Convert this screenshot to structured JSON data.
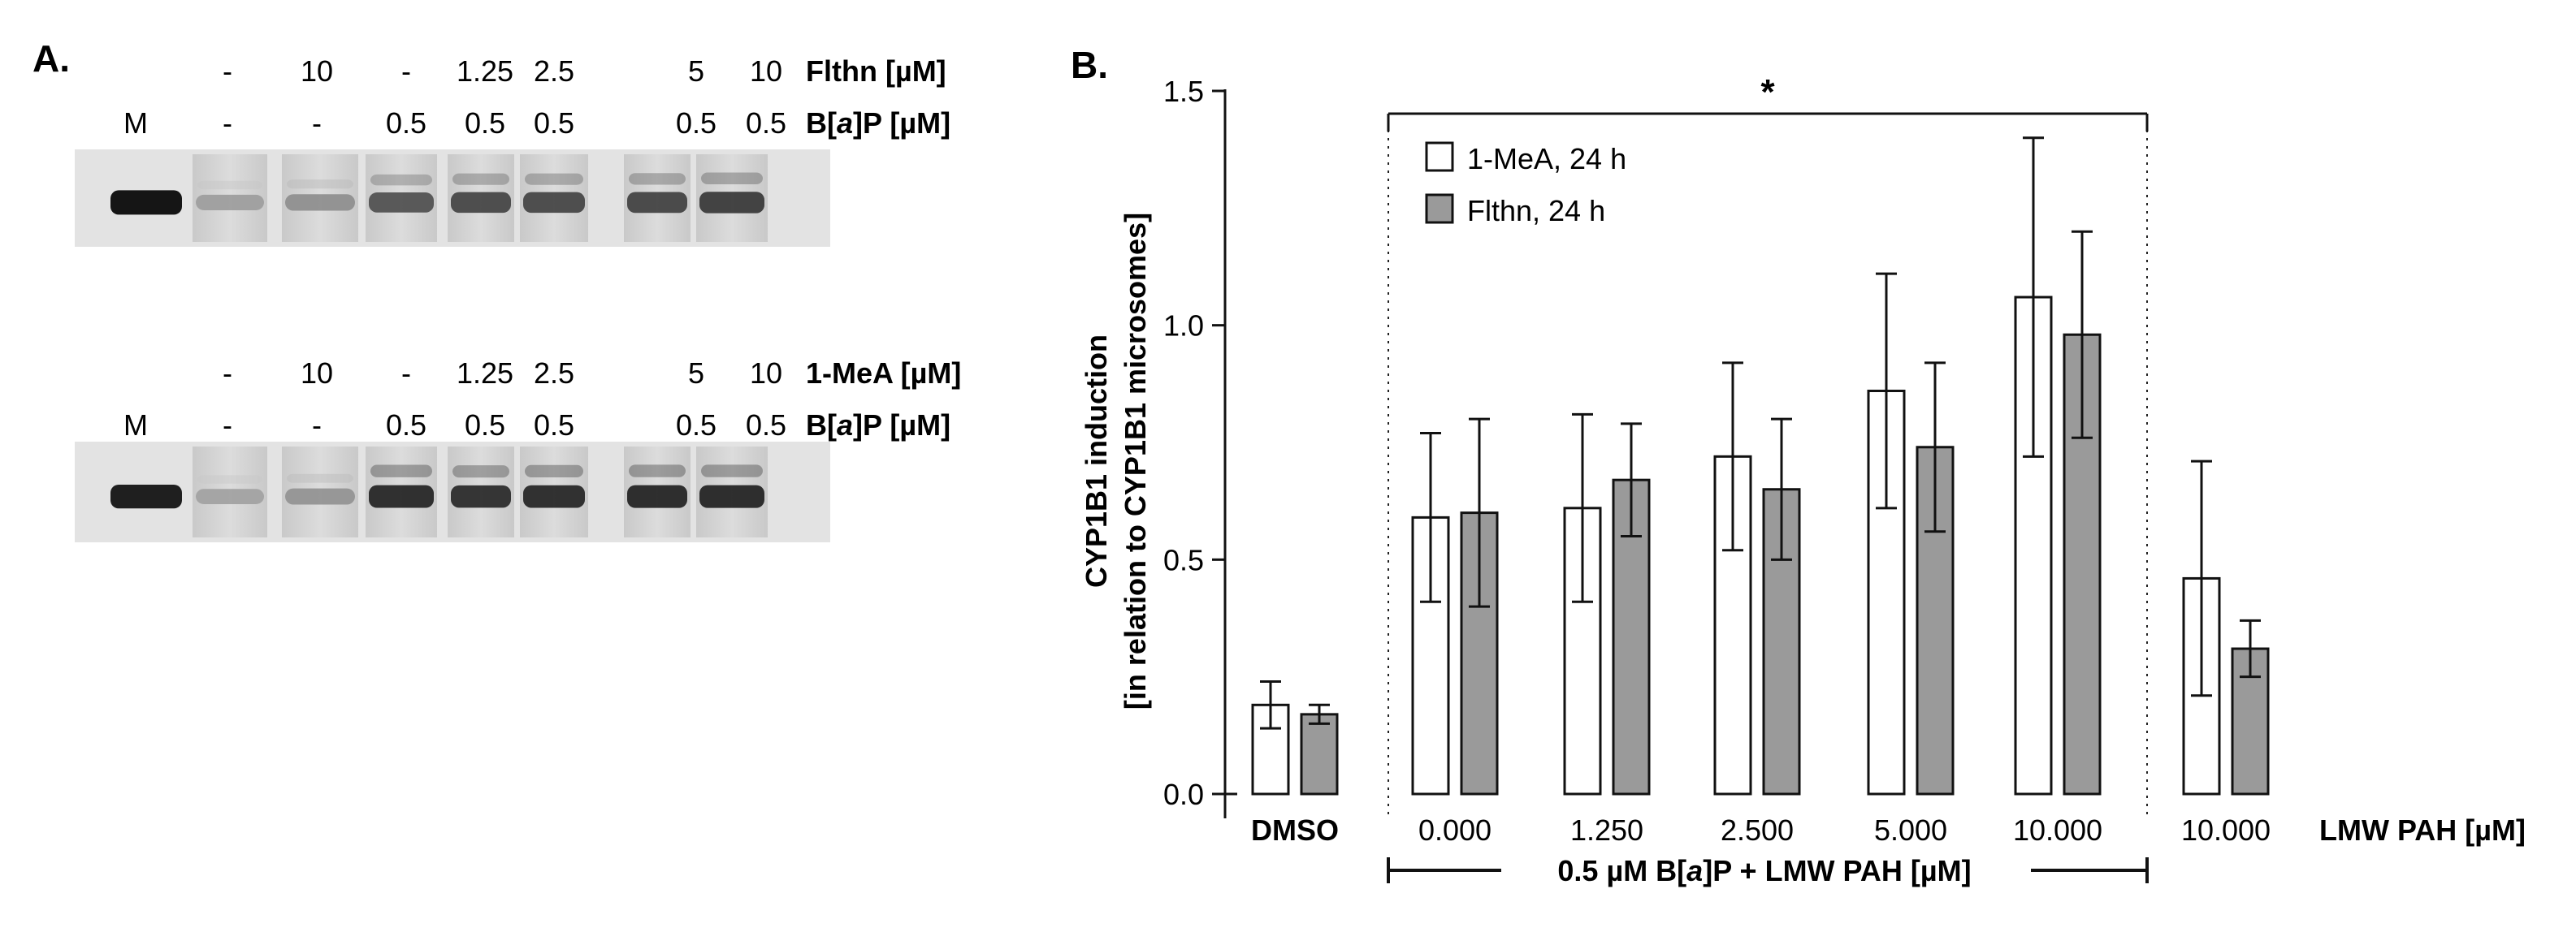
{
  "panel_a": {
    "label": "A.",
    "blot_top": {
      "treatment_row": {
        "values": [
          "-",
          "10",
          "-",
          "1.25",
          "2.5",
          "5",
          "10"
        ],
        "label": "Flthn [µM]"
      },
      "bap_row": {
        "marker": "M",
        "values": [
          "-",
          "-",
          "0.5",
          "0.5",
          "0.5",
          "0.5",
          "0.5"
        ],
        "label_pre": "B[",
        "label_italic": "a",
        "label_post": "]P [µM]"
      },
      "band_intensity": [
        1.0,
        0.22,
        0.3,
        0.62,
        0.68,
        0.68,
        0.7,
        0.74
      ]
    },
    "blot_bottom": {
      "treatment_row": {
        "values": [
          "-",
          "10",
          "-",
          "1.25",
          "2.5",
          "5",
          "10"
        ],
        "label": "1-MeA [µM]"
      },
      "bap_row": {
        "marker": "M",
        "values": [
          "-",
          "-",
          "0.5",
          "0.5",
          "0.5",
          "0.5",
          "0.5"
        ],
        "label_pre": "B[",
        "label_italic": "a",
        "label_post": "]P [µM]"
      },
      "band_intensity": [
        0.95,
        0.2,
        0.28,
        0.85,
        0.82,
        0.84,
        0.86,
        0.86
      ]
    }
  },
  "panel_b": {
    "label": "B.",
    "colors": {
      "white_bar": "#ffffff",
      "grey_bar": "#9a9a9a",
      "ink": "#111111"
    },
    "significance": "*",
    "bracket_label_pre": "0.5 µM B[",
    "bracket_label_italic": "a",
    "bracket_label_post": "]P + LMW PAH [µM]"
  },
  "chart_data": {
    "type": "bar",
    "ylabel_line1": "CYP1B1 induction",
    "ylabel_line2": "[in relation to CYP1B1 microsomes]",
    "xlabel": "LMW PAH [µM]",
    "ylim": [
      0,
      1.5
    ],
    "yticks": [
      "0.0",
      "0.5",
      "1.0",
      "1.5"
    ],
    "ytick_values": [
      0,
      0.5,
      1.0,
      1.5
    ],
    "categories": [
      "DMSO",
      "0.000",
      "1.250",
      "2.500",
      "5.000",
      "10.000",
      "10.000"
    ],
    "series": [
      {
        "name": "1-MeA, 24 h",
        "color": "#ffffff",
        "values": [
          0.19,
          0.59,
          0.61,
          0.72,
          0.86,
          1.06,
          0.46
        ],
        "errors": [
          0.05,
          0.18,
          0.2,
          0.2,
          0.25,
          0.34,
          0.25
        ]
      },
      {
        "name": "Flthn, 24 h",
        "color": "#9a9a9a",
        "values": [
          0.17,
          0.6,
          0.67,
          0.65,
          0.74,
          0.98,
          0.31
        ],
        "errors": [
          0.02,
          0.2,
          0.12,
          0.15,
          0.18,
          0.22,
          0.06
        ]
      }
    ]
  }
}
